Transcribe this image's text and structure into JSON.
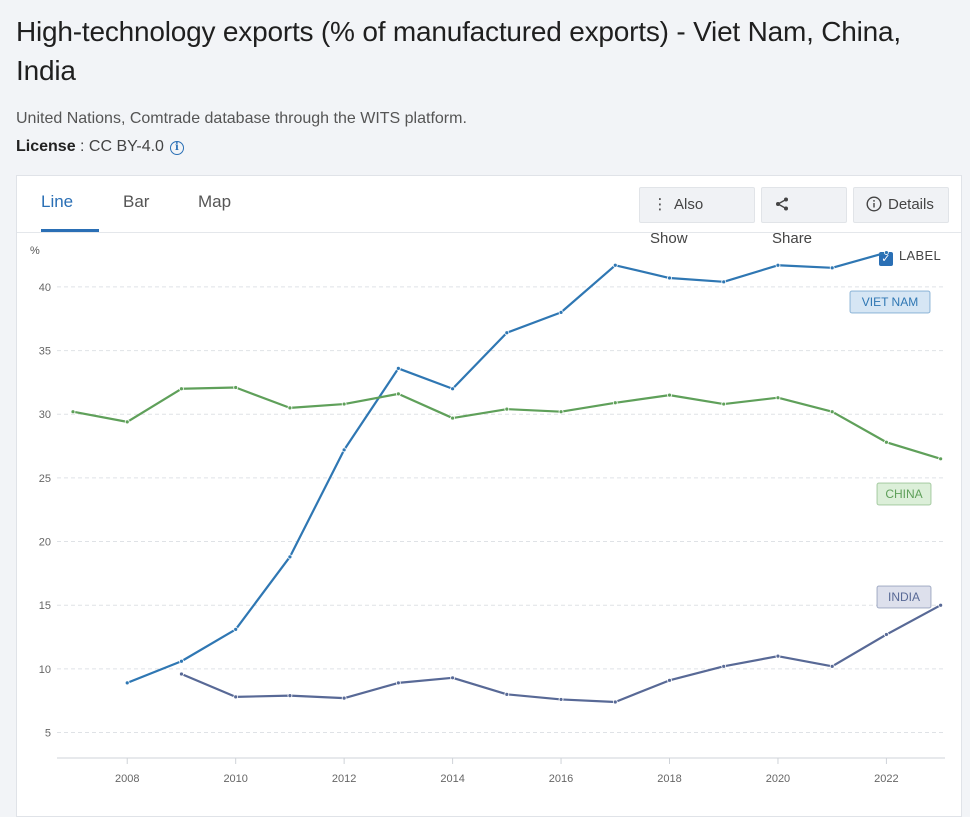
{
  "page": {
    "title": "High-technology exports (% of manufactured exports) - Viet Nam, China, India",
    "source": "United Nations, Comtrade database through the WITS platform.",
    "license_label": "License",
    "license_value": " : CC BY-4.0",
    "info_icon": "info-icon"
  },
  "tabs": [
    {
      "label": "Line",
      "active": true
    },
    {
      "label": "Bar",
      "active": false
    },
    {
      "label": "Map",
      "active": false
    }
  ],
  "toolbar": {
    "also_show": "Also Show",
    "share": "Share",
    "details": "Details",
    "also_show_icon": "vertical-dots-icon",
    "share_icon": "share-icon",
    "details_icon": "info-icon"
  },
  "label_toggle": {
    "label": "LABEL",
    "checked": true
  },
  "chart_data": {
    "type": "line",
    "ylabel": "%",
    "xlabel": "",
    "ylim": [
      3,
      44
    ],
    "xlim": [
      2007,
      2023
    ],
    "yticks": [
      5,
      10,
      15,
      20,
      25,
      30,
      35,
      40
    ],
    "xticks": [
      2008,
      2010,
      2012,
      2014,
      2016,
      2018,
      2020,
      2022
    ],
    "grid": true,
    "series": [
      {
        "name": "VIET NAM",
        "color": "#2f77b3",
        "label_bg": "#d6e6f4",
        "x": [
          2008,
          2009,
          2010,
          2011,
          2012,
          2013,
          2014,
          2015,
          2016,
          2017,
          2018,
          2019,
          2020,
          2021,
          2022
        ],
        "values": [
          8.9,
          10.6,
          13.1,
          18.8,
          27.2,
          33.6,
          32.0,
          36.4,
          38.0,
          41.7,
          40.7,
          40.4,
          41.7,
          41.5,
          42.7
        ]
      },
      {
        "name": "CHINA",
        "color": "#5fa05a",
        "label_bg": "#dcefd9",
        "x": [
          2007,
          2008,
          2009,
          2010,
          2011,
          2012,
          2013,
          2014,
          2015,
          2016,
          2017,
          2018,
          2019,
          2020,
          2021,
          2022,
          2023
        ],
        "values": [
          30.2,
          29.4,
          32.0,
          32.1,
          30.5,
          30.8,
          31.6,
          29.7,
          30.4,
          30.2,
          30.9,
          31.5,
          30.8,
          31.3,
          30.2,
          27.8,
          26.5
        ]
      },
      {
        "name": "INDIA",
        "color": "#586996",
        "label_bg": "#dde0ec",
        "x": [
          2009,
          2010,
          2011,
          2012,
          2013,
          2014,
          2015,
          2016,
          2017,
          2018,
          2019,
          2020,
          2021,
          2022,
          2023
        ],
        "values": [
          9.6,
          7.8,
          7.9,
          7.7,
          8.9,
          9.3,
          8.0,
          7.6,
          7.4,
          9.1,
          10.2,
          11.0,
          10.2,
          12.7,
          15.0
        ]
      }
    ]
  }
}
